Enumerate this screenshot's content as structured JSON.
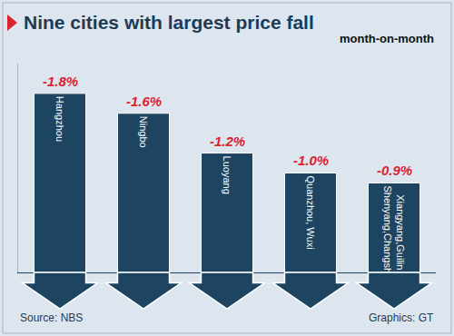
{
  "chart_data": {
    "type": "bar",
    "title": "Nine cities with largest price fall",
    "subtitle": "month-on-month",
    "categories": [
      "Hangzhou",
      "Ningbo",
      "Luoyang",
      "Quanzhou, Wuxi",
      "Xiangyang,Guilin\nShenyang,Changsha"
    ],
    "values": [
      -1.8,
      -1.6,
      -1.2,
      -1.0,
      -0.9
    ],
    "value_labels": [
      "-1.8%",
      "-1.6%",
      "-1.2%",
      "-1.0%",
      "-0.9%"
    ],
    "data_labels": true,
    "color": "#1d4461",
    "ylim": [
      0,
      -2.1
    ],
    "yticks": [],
    "tick_labels": false,
    "grid": false,
    "source": "Source: NBS",
    "credit": "Graphics: GT"
  }
}
